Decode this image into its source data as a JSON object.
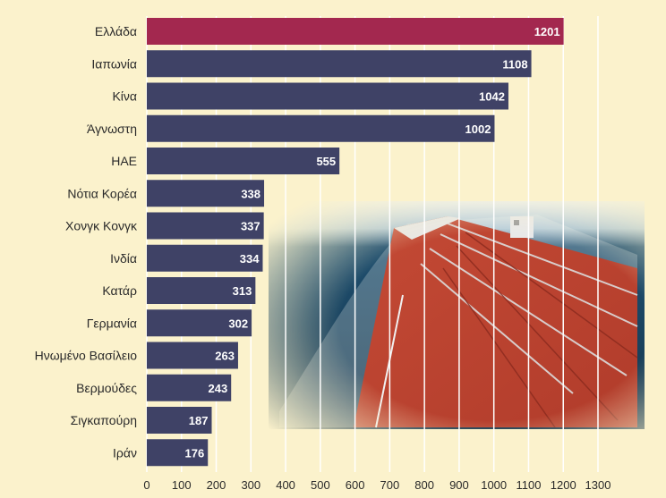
{
  "chart_data": {
    "type": "bar",
    "orientation": "horizontal",
    "categories": [
      "Ελλάδα",
      "Ιαπωνία",
      "Κίνα",
      "Άγνωστη",
      "ΗΑΕ",
      "Νότια Κορέα",
      "Χονγκ Κονγκ",
      "Ινδία",
      "Κατάρ",
      "Γερμανία",
      "Ηνωμένο Βασίλειο",
      "Βερμούδες",
      "Σιγκαπούρη",
      "Ιράν"
    ],
    "values": [
      1201,
      1108,
      1042,
      1002,
      555,
      338,
      337,
      334,
      313,
      302,
      263,
      243,
      187,
      176
    ],
    "x_ticks": [
      0,
      100,
      200,
      300,
      400,
      500,
      600,
      700,
      800,
      900,
      1000,
      1100,
      1200,
      1300
    ],
    "xlim": [
      0,
      1300
    ],
    "grid": "vertical",
    "colors": {
      "highlight": "#a3284f",
      "bar": "#3f4266",
      "grid": "#ffffff",
      "background": "#fbf2cc"
    },
    "highlight_index": 0
  },
  "photo": {
    "subject": "oil-tanker-deck"
  }
}
